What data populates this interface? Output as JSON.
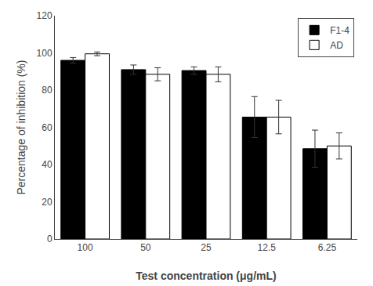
{
  "chart_data": {
    "type": "bar",
    "xlabel": "Test concentration (μg/mL)",
    "ylabel": "Percentage of inhibition (%)",
    "categories": [
      "100",
      "50",
      "25",
      "12.5",
      "6.25"
    ],
    "series": [
      {
        "name": "F1-4",
        "color": "#000000",
        "values": [
          96,
          91,
          90.5,
          65.5,
          48.5
        ],
        "errors": [
          1.5,
          2.5,
          2.0,
          11.0,
          10.0
        ]
      },
      {
        "name": "AD",
        "color": "#ffffff",
        "values": [
          99.5,
          88.5,
          88.5,
          65.5,
          50
        ],
        "errors": [
          1.0,
          3.5,
          4.0,
          9.0,
          7.0
        ]
      }
    ],
    "ylim": [
      0,
      120
    ],
    "yticks": [
      0,
      20,
      40,
      60,
      80,
      100,
      120
    ],
    "grid": false,
    "legend": "upper right"
  }
}
